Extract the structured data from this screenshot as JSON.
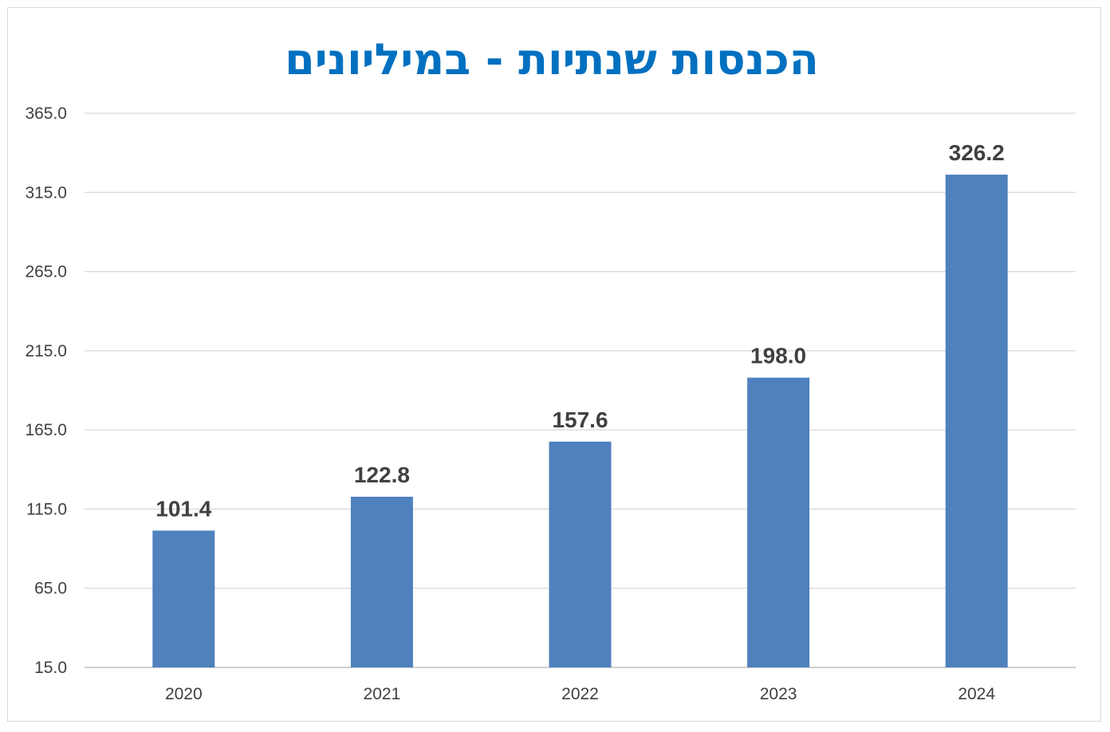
{
  "chart_data": {
    "type": "bar",
    "title": "הכנסות שנתיות - במיליונים",
    "categories": [
      "2020",
      "2021",
      "2022",
      "2023",
      "2024"
    ],
    "values": [
      101.4,
      122.8,
      157.6,
      198.0,
      326.2
    ],
    "data_labels": [
      "101.4",
      "122.8",
      "157.6",
      "198.0",
      "326.2"
    ],
    "ylim": [
      15,
      365
    ],
    "yticks": [
      "15.0",
      "65.0",
      "115.0",
      "165.0",
      "215.0",
      "265.0",
      "315.0",
      "365.0"
    ],
    "ytick_values": [
      15,
      65,
      115,
      165,
      215,
      265,
      315,
      365
    ],
    "xlabel": "",
    "ylabel": "",
    "grid": true,
    "legend": "none"
  },
  "colors": {
    "bar": "#4f81bd",
    "title": "#0070c0",
    "grid": "#d9d9d9",
    "axis": "#bfbfbf",
    "text": "#404040"
  }
}
